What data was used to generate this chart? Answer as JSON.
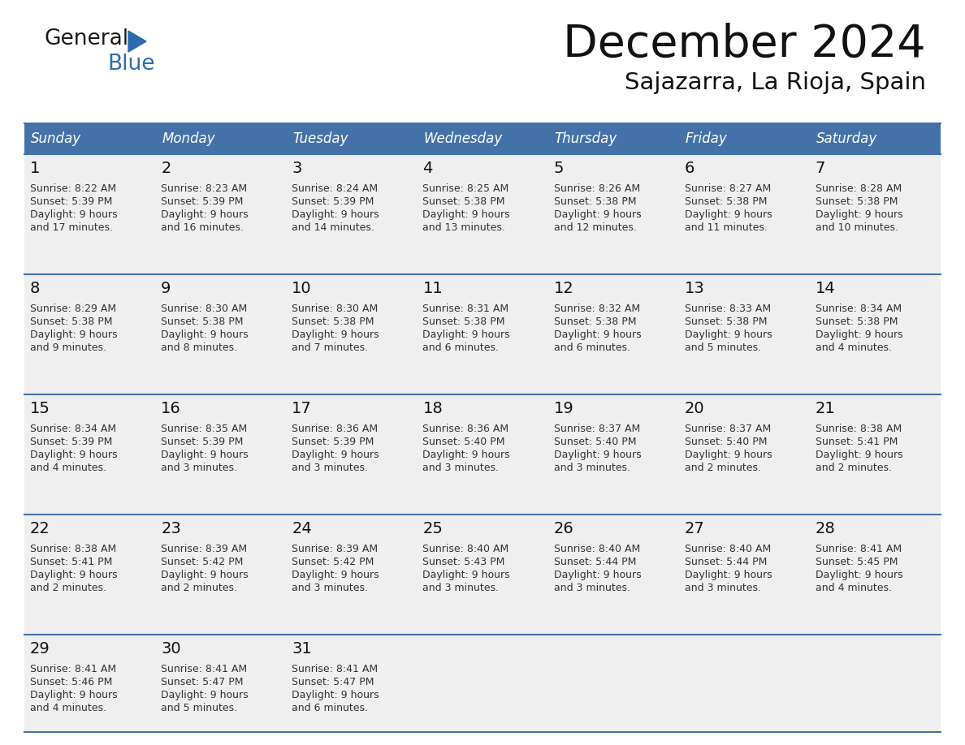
{
  "title": "December 2024",
  "subtitle": "Sajazarra, La Rioja, Spain",
  "header_color": "#4472A8",
  "header_text_color": "#FFFFFF",
  "cell_bg_color": "#EFEFEF",
  "text_color": "#333333",
  "day_number_color": "#111111",
  "line_color": "#4472A8",
  "border_color": "#4472A8",
  "days_of_week": [
    "Sunday",
    "Monday",
    "Tuesday",
    "Wednesday",
    "Thursday",
    "Friday",
    "Saturday"
  ],
  "weeks": [
    [
      {
        "day": 1,
        "sunrise": "8:22 AM",
        "sunset": "5:39 PM",
        "daylight_h": "9 hours",
        "daylight_m": "and 17 minutes."
      },
      {
        "day": 2,
        "sunrise": "8:23 AM",
        "sunset": "5:39 PM",
        "daylight_h": "9 hours",
        "daylight_m": "and 16 minutes."
      },
      {
        "day": 3,
        "sunrise": "8:24 AM",
        "sunset": "5:39 PM",
        "daylight_h": "9 hours",
        "daylight_m": "and 14 minutes."
      },
      {
        "day": 4,
        "sunrise": "8:25 AM",
        "sunset": "5:38 PM",
        "daylight_h": "9 hours",
        "daylight_m": "and 13 minutes."
      },
      {
        "day": 5,
        "sunrise": "8:26 AM",
        "sunset": "5:38 PM",
        "daylight_h": "9 hours",
        "daylight_m": "and 12 minutes."
      },
      {
        "day": 6,
        "sunrise": "8:27 AM",
        "sunset": "5:38 PM",
        "daylight_h": "9 hours",
        "daylight_m": "and 11 minutes."
      },
      {
        "day": 7,
        "sunrise": "8:28 AM",
        "sunset": "5:38 PM",
        "daylight_h": "9 hours",
        "daylight_m": "and 10 minutes."
      }
    ],
    [
      {
        "day": 8,
        "sunrise": "8:29 AM",
        "sunset": "5:38 PM",
        "daylight_h": "9 hours",
        "daylight_m": "and 9 minutes."
      },
      {
        "day": 9,
        "sunrise": "8:30 AM",
        "sunset": "5:38 PM",
        "daylight_h": "9 hours",
        "daylight_m": "and 8 minutes."
      },
      {
        "day": 10,
        "sunrise": "8:30 AM",
        "sunset": "5:38 PM",
        "daylight_h": "9 hours",
        "daylight_m": "and 7 minutes."
      },
      {
        "day": 11,
        "sunrise": "8:31 AM",
        "sunset": "5:38 PM",
        "daylight_h": "9 hours",
        "daylight_m": "and 6 minutes."
      },
      {
        "day": 12,
        "sunrise": "8:32 AM",
        "sunset": "5:38 PM",
        "daylight_h": "9 hours",
        "daylight_m": "and 6 minutes."
      },
      {
        "day": 13,
        "sunrise": "8:33 AM",
        "sunset": "5:38 PM",
        "daylight_h": "9 hours",
        "daylight_m": "and 5 minutes."
      },
      {
        "day": 14,
        "sunrise": "8:34 AM",
        "sunset": "5:38 PM",
        "daylight_h": "9 hours",
        "daylight_m": "and 4 minutes."
      }
    ],
    [
      {
        "day": 15,
        "sunrise": "8:34 AM",
        "sunset": "5:39 PM",
        "daylight_h": "9 hours",
        "daylight_m": "and 4 minutes."
      },
      {
        "day": 16,
        "sunrise": "8:35 AM",
        "sunset": "5:39 PM",
        "daylight_h": "9 hours",
        "daylight_m": "and 3 minutes."
      },
      {
        "day": 17,
        "sunrise": "8:36 AM",
        "sunset": "5:39 PM",
        "daylight_h": "9 hours",
        "daylight_m": "and 3 minutes."
      },
      {
        "day": 18,
        "sunrise": "8:36 AM",
        "sunset": "5:40 PM",
        "daylight_h": "9 hours",
        "daylight_m": "and 3 minutes."
      },
      {
        "day": 19,
        "sunrise": "8:37 AM",
        "sunset": "5:40 PM",
        "daylight_h": "9 hours",
        "daylight_m": "and 3 minutes."
      },
      {
        "day": 20,
        "sunrise": "8:37 AM",
        "sunset": "5:40 PM",
        "daylight_h": "9 hours",
        "daylight_m": "and 2 minutes."
      },
      {
        "day": 21,
        "sunrise": "8:38 AM",
        "sunset": "5:41 PM",
        "daylight_h": "9 hours",
        "daylight_m": "and 2 minutes."
      }
    ],
    [
      {
        "day": 22,
        "sunrise": "8:38 AM",
        "sunset": "5:41 PM",
        "daylight_h": "9 hours",
        "daylight_m": "and 2 minutes."
      },
      {
        "day": 23,
        "sunrise": "8:39 AM",
        "sunset": "5:42 PM",
        "daylight_h": "9 hours",
        "daylight_m": "and 2 minutes."
      },
      {
        "day": 24,
        "sunrise": "8:39 AM",
        "sunset": "5:42 PM",
        "daylight_h": "9 hours",
        "daylight_m": "and 3 minutes."
      },
      {
        "day": 25,
        "sunrise": "8:40 AM",
        "sunset": "5:43 PM",
        "daylight_h": "9 hours",
        "daylight_m": "and 3 minutes."
      },
      {
        "day": 26,
        "sunrise": "8:40 AM",
        "sunset": "5:44 PM",
        "daylight_h": "9 hours",
        "daylight_m": "and 3 minutes."
      },
      {
        "day": 27,
        "sunrise": "8:40 AM",
        "sunset": "5:44 PM",
        "daylight_h": "9 hours",
        "daylight_m": "and 3 minutes."
      },
      {
        "day": 28,
        "sunrise": "8:41 AM",
        "sunset": "5:45 PM",
        "daylight_h": "9 hours",
        "daylight_m": "and 4 minutes."
      }
    ],
    [
      {
        "day": 29,
        "sunrise": "8:41 AM",
        "sunset": "5:46 PM",
        "daylight_h": "9 hours",
        "daylight_m": "and 4 minutes."
      },
      {
        "day": 30,
        "sunrise": "8:41 AM",
        "sunset": "5:47 PM",
        "daylight_h": "9 hours",
        "daylight_m": "and 5 minutes."
      },
      {
        "day": 31,
        "sunrise": "8:41 AM",
        "sunset": "5:47 PM",
        "daylight_h": "9 hours",
        "daylight_m": "and 6 minutes."
      },
      null,
      null,
      null,
      null
    ]
  ],
  "logo_general_color": "#1A1A1A",
  "logo_blue_color": "#2B6CB0",
  "logo_triangle_color": "#2B6CB0"
}
